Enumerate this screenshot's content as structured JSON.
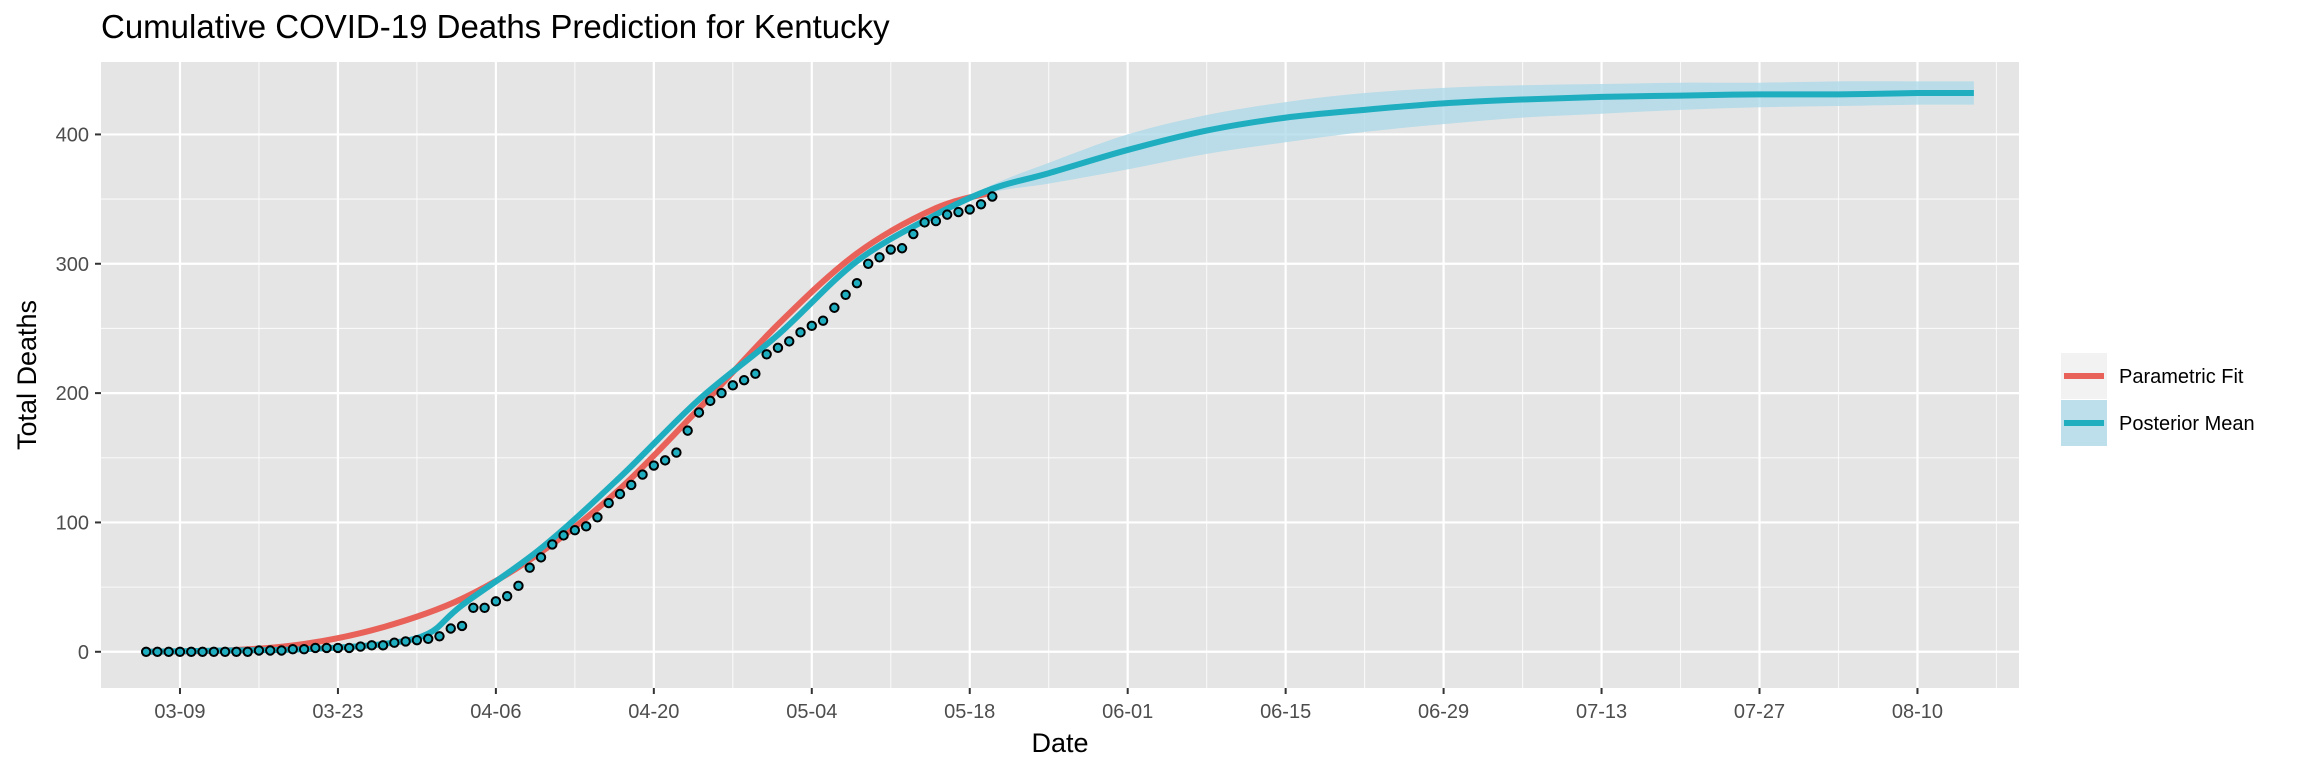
{
  "chart_data": {
    "type": "line",
    "title": "Cumulative COVID-19 Deaths Prediction for Kentucky",
    "xlabel": "Date",
    "ylabel": "Total Deaths",
    "x_axis": {
      "type": "date",
      "start": "2020-03-06",
      "end": "2020-08-15",
      "xlim": [
        "2020-03-02",
        "2020-08-19"
      ],
      "tick_dates": [
        "2020-03-09",
        "2020-03-23",
        "2020-04-06",
        "2020-04-20",
        "2020-05-04",
        "2020-05-18",
        "2020-06-01",
        "2020-06-15",
        "2020-06-29",
        "2020-07-13",
        "2020-07-27",
        "2020-08-10"
      ],
      "tick_labels": [
        "03-09",
        "03-23",
        "04-06",
        "04-20",
        "05-04",
        "05-18",
        "06-01",
        "06-15",
        "06-29",
        "07-13",
        "07-27",
        "08-10"
      ]
    },
    "y_axis": {
      "ylim": [
        -28,
        456
      ],
      "ticks": [
        0,
        100,
        200,
        300,
        400
      ],
      "tick_labels": [
        "0",
        "100",
        "200",
        "300",
        "400"
      ]
    },
    "grid": true,
    "legend": {
      "position": "right",
      "entries": [
        {
          "label": "Parametric Fit",
          "color": "#e8625a"
        },
        {
          "label": "Posterior Mean",
          "color": "#1fadc0"
        }
      ]
    },
    "colors": {
      "panel_bg": "#e5e5e5",
      "grid_major": "#ffffff",
      "parametric_fit": "#e8625a",
      "posterior_mean": "#1fadc0",
      "credible_band": "#a9d8e8",
      "point_fill": "#1fadc0",
      "point_stroke": "#000000"
    },
    "observed": {
      "start": "2020-03-06",
      "values": [
        0,
        0,
        0,
        0,
        0,
        0,
        0,
        0,
        0,
        0,
        1,
        1,
        1,
        2,
        2,
        3,
        3,
        3,
        3,
        4,
        5,
        5,
        7,
        8,
        9,
        10,
        12,
        18,
        20,
        34,
        34,
        39,
        43,
        51,
        65,
        73,
        83,
        90,
        94,
        97,
        104,
        115,
        122,
        129,
        137,
        144,
        148,
        154,
        171,
        185,
        194,
        200,
        206,
        210,
        215,
        230,
        235,
        240,
        247,
        252,
        256,
        266,
        276,
        285,
        300,
        305,
        311,
        312,
        323,
        332,
        333,
        338,
        340,
        342,
        346,
        352
      ]
    },
    "series": [
      {
        "name": "Parametric Fit",
        "x": [
          "2020-03-06",
          "2020-03-13",
          "2020-03-20",
          "2020-03-27",
          "2020-04-03",
          "2020-04-10",
          "2020-04-17",
          "2020-04-24",
          "2020-05-01",
          "2020-05-08",
          "2020-05-15",
          "2020-05-20"
        ],
        "values": [
          0,
          1,
          6,
          19,
          41,
          77,
          126,
          188,
          253,
          308,
          343,
          355
        ]
      },
      {
        "name": "Posterior Mean",
        "x": [
          "2020-03-06",
          "2020-03-13",
          "2020-03-20",
          "2020-03-27",
          "2020-03-31",
          "2020-04-03",
          "2020-04-10",
          "2020-04-17",
          "2020-04-24",
          "2020-05-01",
          "2020-05-08",
          "2020-05-15",
          "2020-05-20",
          "2020-05-25",
          "2020-06-01",
          "2020-06-08",
          "2020-06-15",
          "2020-06-22",
          "2020-06-29",
          "2020-07-06",
          "2020-07-13",
          "2020-07-20",
          "2020-07-27",
          "2020-08-03",
          "2020-08-10",
          "2020-08-15"
        ],
        "values": [
          0,
          1,
          2,
          6,
          14,
          36,
          80,
          135,
          195,
          245,
          302,
          338,
          358,
          370,
          388,
          403,
          413,
          419,
          424,
          427,
          429,
          430,
          431,
          431,
          432,
          432
        ],
        "band_lower": [
          0,
          1,
          2,
          6,
          14,
          36,
          80,
          135,
          195,
          245,
          302,
          338,
          355,
          362,
          373,
          385,
          394,
          402,
          408,
          413,
          416,
          419,
          421,
          422,
          423,
          423
        ],
        "band_upper": [
          0,
          1,
          2,
          6,
          14,
          36,
          80,
          135,
          195,
          245,
          302,
          338,
          361,
          378,
          400,
          415,
          425,
          432,
          436,
          438,
          439,
          440,
          440,
          441,
          441,
          441
        ]
      }
    ]
  }
}
